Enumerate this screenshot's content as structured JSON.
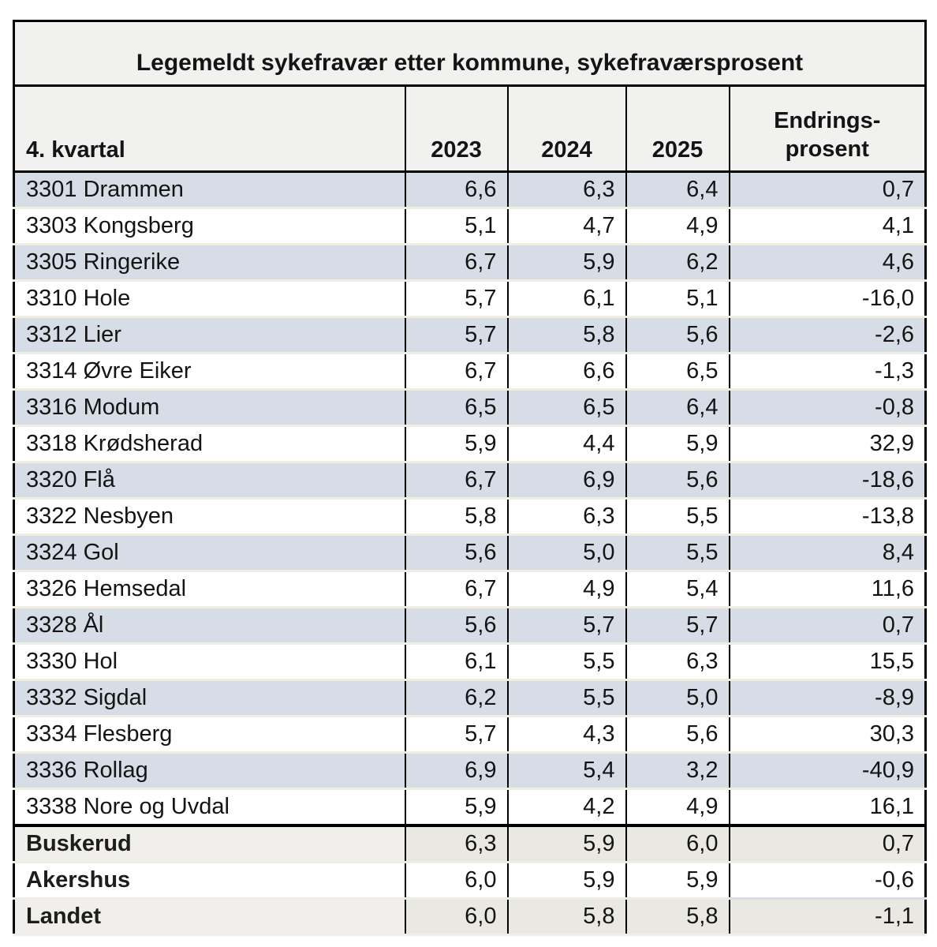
{
  "table": {
    "title": "Legemeldt sykefravær etter kommune, sykefraværsprosent",
    "header": {
      "col0": "4. kvartal",
      "years": [
        "2023",
        "2024",
        "2025"
      ],
      "change_line1": "Endrings-",
      "change_line2": "prosent"
    },
    "rows": [
      {
        "name": "3301 Drammen",
        "v2023": "6,6",
        "v2024": "6,3",
        "v2025": "6,4",
        "change": "0,7"
      },
      {
        "name": "3303 Kongsberg",
        "v2023": "5,1",
        "v2024": "4,7",
        "v2025": "4,9",
        "change": "4,1"
      },
      {
        "name": "3305 Ringerike",
        "v2023": "6,7",
        "v2024": "5,9",
        "v2025": "6,2",
        "change": "4,6"
      },
      {
        "name": "3310 Hole",
        "v2023": "5,7",
        "v2024": "6,1",
        "v2025": "5,1",
        "change": "-16,0"
      },
      {
        "name": "3312 Lier",
        "v2023": "5,7",
        "v2024": "5,8",
        "v2025": "5,6",
        "change": "-2,6"
      },
      {
        "name": "3314 Øvre Eiker",
        "v2023": "6,7",
        "v2024": "6,6",
        "v2025": "6,5",
        "change": "-1,3"
      },
      {
        "name": "3316 Modum",
        "v2023": "6,5",
        "v2024": "6,5",
        "v2025": "6,4",
        "change": "-0,8"
      },
      {
        "name": "3318 Krødsherad",
        "v2023": "5,9",
        "v2024": "4,4",
        "v2025": "5,9",
        "change": "32,9"
      },
      {
        "name": "3320 Flå",
        "v2023": "6,7",
        "v2024": "6,9",
        "v2025": "5,6",
        "change": "-18,6"
      },
      {
        "name": "3322 Nesbyen",
        "v2023": "5,8",
        "v2024": "6,3",
        "v2025": "5,5",
        "change": "-13,8"
      },
      {
        "name": "3324 Gol",
        "v2023": "5,6",
        "v2024": "5,0",
        "v2025": "5,5",
        "change": "8,4"
      },
      {
        "name": "3326 Hemsedal",
        "v2023": "6,7",
        "v2024": "4,9",
        "v2025": "5,4",
        "change": "11,6"
      },
      {
        "name": "3328 Ål",
        "v2023": "5,6",
        "v2024": "5,7",
        "v2025": "5,7",
        "change": "0,7"
      },
      {
        "name": "3330 Hol",
        "v2023": "6,1",
        "v2024": "5,5",
        "v2025": "6,3",
        "change": "15,5"
      },
      {
        "name": "3332 Sigdal",
        "v2023": "6,2",
        "v2024": "5,5",
        "v2025": "5,0",
        "change": "-8,9"
      },
      {
        "name": "3334 Flesberg",
        "v2023": "5,7",
        "v2024": "4,3",
        "v2025": "5,6",
        "change": "30,3"
      },
      {
        "name": "3336 Rollag",
        "v2023": "6,9",
        "v2024": "5,4",
        "v2025": "3,2",
        "change": "-40,9"
      },
      {
        "name": "3338 Nore og Uvdal",
        "v2023": "5,9",
        "v2024": "4,2",
        "v2025": "4,9",
        "change": "16,1"
      }
    ],
    "summary_rows": [
      {
        "name": "Buskerud",
        "v2023": "6,3",
        "v2024": "5,9",
        "v2025": "6,0",
        "change": "0,7"
      },
      {
        "name": "Akershus",
        "v2023": "6,0",
        "v2024": "5,9",
        "v2025": "5,9",
        "change": "-0,6"
      },
      {
        "name": "Landet",
        "v2023": "6,0",
        "v2024": "5,8",
        "v2025": "5,8",
        "change": "-1,1"
      }
    ],
    "colors": {
      "row_alt_blue": "#d6dde6",
      "header_bg": "#f1f1ef",
      "summary_bg": "#f0efeb",
      "summary_value_bg": "#e9e8e2",
      "row_divider": "#efeee5",
      "border": "#000000"
    }
  }
}
